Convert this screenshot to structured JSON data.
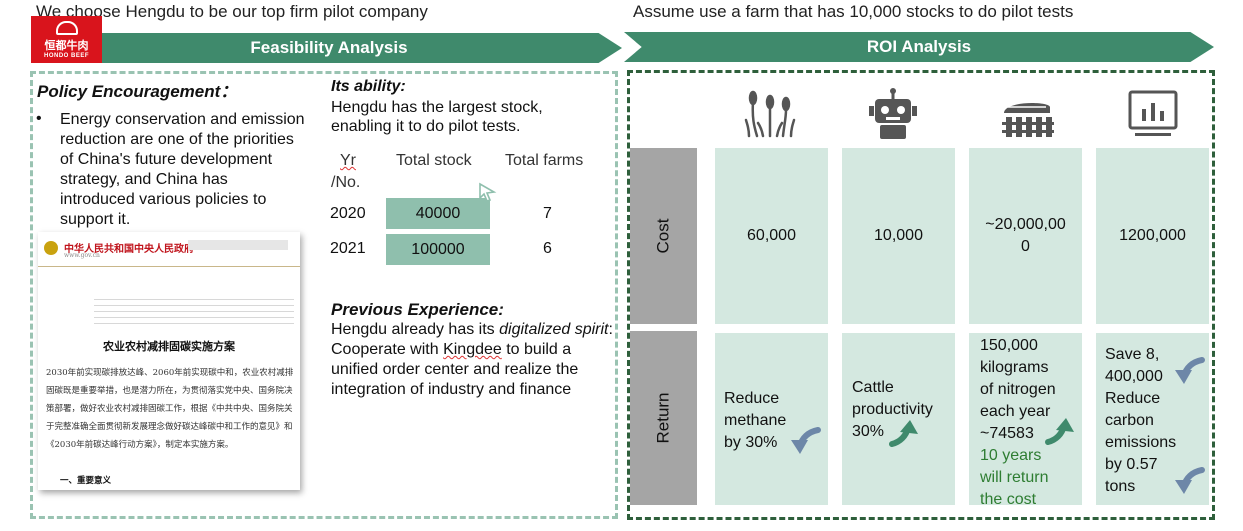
{
  "header": {
    "left_caption": "We choose Hengdu to be our top firm pilot company",
    "right_caption": "Assume  use a farm that has 10,000 stocks to do pilot tests"
  },
  "logo": {
    "cn": "恒都牛肉",
    "en": "HONDO BEEF"
  },
  "banners": {
    "left": "Feasibility Analysis",
    "right": "ROI Analysis"
  },
  "policy": {
    "title": "Policy Encouragement：",
    "bullet": "•",
    "text": "Energy conservation and emission reduction are one of the priorities of China's future development strategy, and China has introduced various policies to support it."
  },
  "document": {
    "header": "中华人民共和国中央人民政府",
    "url": "www.gov.cn",
    "title": "农业农村减排固碳实施方案",
    "body": "2030年前实现碳排放达峰、2060年前实现碳中和，农业农村减排固碳既是重要举措，也是潜力所在，为贯彻落实党中央、国务院决策部署，做好农业农村减排固碳工作，根据《中共中央、国务院关于完整准确全面贯彻新发展理念做好碳达峰碳中和工作的意见》和《2030年前碳达峰行动方案》，制定本实施方案。",
    "section": "一、重要意义"
  },
  "ability": {
    "title": "Its ability:",
    "text": "Hengdu has the largest stock, enabling it to do pilot tests."
  },
  "stock_table": {
    "headers": {
      "yr": "Yr",
      "no": "/No.",
      "stock": "Total stock",
      "farms": "Total farms"
    },
    "rows": [
      {
        "year": "2020",
        "stock": "40000",
        "farms": "7"
      },
      {
        "year": "2021",
        "stock": "100000",
        "farms": "6"
      }
    ]
  },
  "previous": {
    "title": "Previous Experience:",
    "text_1": "Hengdu already has its ",
    "text_italic": "digitalized spirit",
    "text_2": ": Cooperate with ",
    "kingdee": "Kingdee",
    "text_3": " to build a unified order center and realize the integration of industry and finance"
  },
  "roi": {
    "row_labels": {
      "cost": "Cost",
      "return": "Return"
    },
    "icons": [
      "wetland-plant-icon",
      "robot-icon",
      "farm-fence-icon",
      "monitor-chart-icon"
    ],
    "costs": [
      "60,000",
      "10,000",
      "~20,000,00\n0",
      "1200,000"
    ],
    "returns": {
      "r1": "Reduce\nmethane\nby 30%",
      "r2": "Cattle\nproductivity\n30%",
      "r3_main": "150,000\nkilograms\nof nitrogen\neach year\n~74583",
      "r3_green": "10 years\nwill return\nthe cost",
      "r4": "Save 8,\n400,000\nReduce\ncarbon\nemissions\nby 0.57\ntons"
    }
  },
  "colors": {
    "banner": "#3f8a6c",
    "cell": "#d4e8e0",
    "side": "#a5a5a5",
    "table_cell": "#8fbfad",
    "green_text": "#2e7d32",
    "arrow_blue": "#6d87a8",
    "arrow_green": "#3f8a6c"
  }
}
